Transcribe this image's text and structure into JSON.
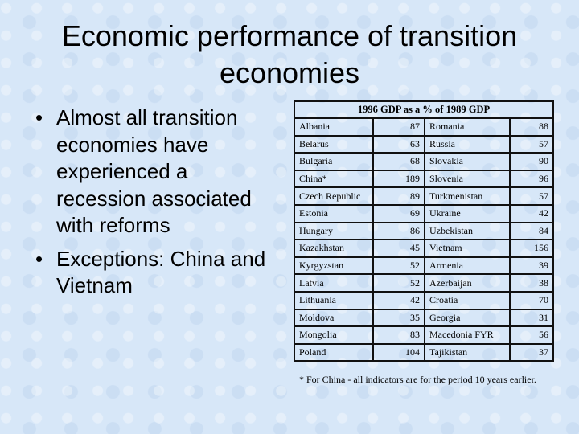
{
  "title": "Economic performance of transition economies",
  "bullets": [
    "Almost all transition economies have experienced a recession associated with reforms",
    "Exceptions: China and Vietnam"
  ],
  "table": {
    "header": "1996 GDP as a  % of 1989 GDP",
    "rows": [
      [
        "Albania",
        "87",
        "Romania",
        "88"
      ],
      [
        "Belarus",
        "63",
        "Russia",
        "57"
      ],
      [
        "Bulgaria",
        "68",
        "Slovakia",
        "90"
      ],
      [
        "China*",
        "189",
        "Slovenia",
        "96"
      ],
      [
        "Czech Republic",
        "89",
        "Turkmenistan",
        "57"
      ],
      [
        "Estonia",
        "69",
        "Ukraine",
        "42"
      ],
      [
        "Hungary",
        "86",
        "Uzbekistan",
        "84"
      ],
      [
        "Kazakhstan",
        "45",
        "Vietnam",
        "156"
      ],
      [
        "Kyrgyzstan",
        "52",
        "Armenia",
        "39"
      ],
      [
        "Latvia",
        "52",
        "Azerbaijan",
        "38"
      ],
      [
        "Lithuania",
        "42",
        "Croatia",
        "70"
      ],
      [
        "Moldova",
        "35",
        "Georgia",
        "31"
      ],
      [
        "Mongolia",
        "83",
        "Macedonia FYR",
        "56"
      ],
      [
        "Poland",
        "104",
        "Tajikistan",
        "37"
      ]
    ]
  },
  "footnote": "* For China - all indicators are for the period 10 years earlier."
}
